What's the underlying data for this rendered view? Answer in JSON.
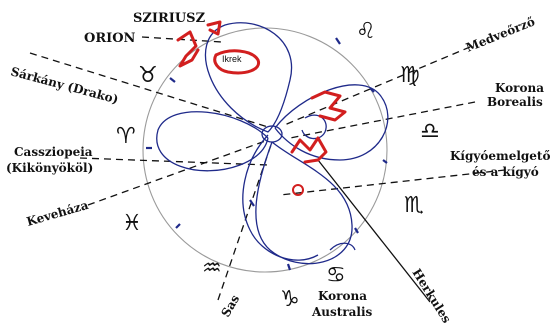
{
  "labels": {
    "sziriusz": "SZIRIUSZ",
    "orion": "ORION",
    "ikrek": "Ikrek",
    "sarkany": "Sárkány (Drako)",
    "medveorzo": "Medveőrző",
    "korona_borealis_1": "Korona",
    "korona_borealis_2": "Borealis",
    "cassziopeia_1": "Cassziopeia",
    "cassziopeia_2": "(Kikönyököl)",
    "kigyo_1": "Kígyóemelgető",
    "kigyo_2": "és a kígyó",
    "kevehaza": "Keveháza",
    "sas": "Sas",
    "korona_australis_1": "Korona",
    "korona_australis_2": "Australis",
    "herkules": "Herkules"
  },
  "zodiac": {
    "leo": "♌",
    "taurus": "♉",
    "virgo": "♍",
    "aries": "♈",
    "libra": "♎",
    "pisces": "♓",
    "scorpio": "♏",
    "sagittarius": "♐",
    "aquarius": "♒",
    "capricorn": "♑",
    "cancer": "♋"
  },
  "colors": {
    "ink": "#111111",
    "loop_blue": "#1f2a8a",
    "star_red": "#d21f1f",
    "ring_gray": "#9a9a9a"
  }
}
